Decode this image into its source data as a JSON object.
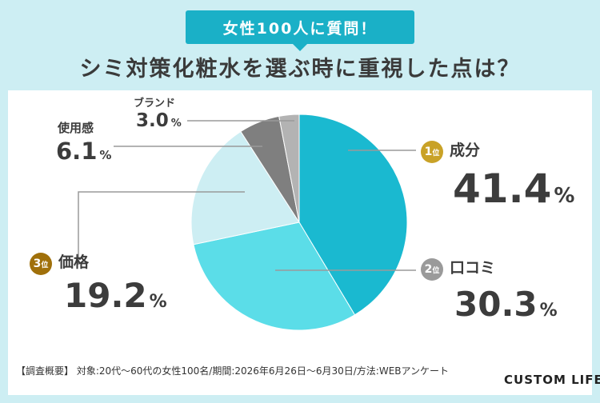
{
  "header": {
    "badge": "女性100人に質問！",
    "title": "シミ対策化粧水を選ぶ時に重視した点は？"
  },
  "ranks": {
    "first": {
      "num": "1",
      "suffix": "位"
    },
    "second": {
      "num": "2",
      "suffix": "位"
    },
    "third": {
      "num": "3",
      "suffix": "位"
    }
  },
  "chart_data": {
    "type": "pie",
    "slices": [
      {
        "label": "成分",
        "value": 41.4,
        "value_text": "41.4",
        "color": "#1ab9d0"
      },
      {
        "label": "口コミ",
        "value": 30.3,
        "value_text": "30.3",
        "color": "#5bdde8"
      },
      {
        "label": "価格",
        "value": 19.2,
        "value_text": "19.2",
        "color": "#cdeef3"
      },
      {
        "label": "使用感",
        "value": 6.1,
        "value_text": "6.1",
        "color": "#7f7f7f"
      },
      {
        "label": "ブランド",
        "value": 3.0,
        "value_text": "3.0",
        "color": "#b3b3b3"
      }
    ],
    "unit": "%"
  },
  "footer": {
    "note": "【調査概要】 対象:20代〜60代の女性100名/期間:2026年6月26日〜6月30日/方法:WEBアンケート",
    "logo": "CUSTOM LIFE"
  },
  "colors": {
    "gold": "#c9a227",
    "silver": "#9a9a9a",
    "bronze": "#a0700a"
  }
}
